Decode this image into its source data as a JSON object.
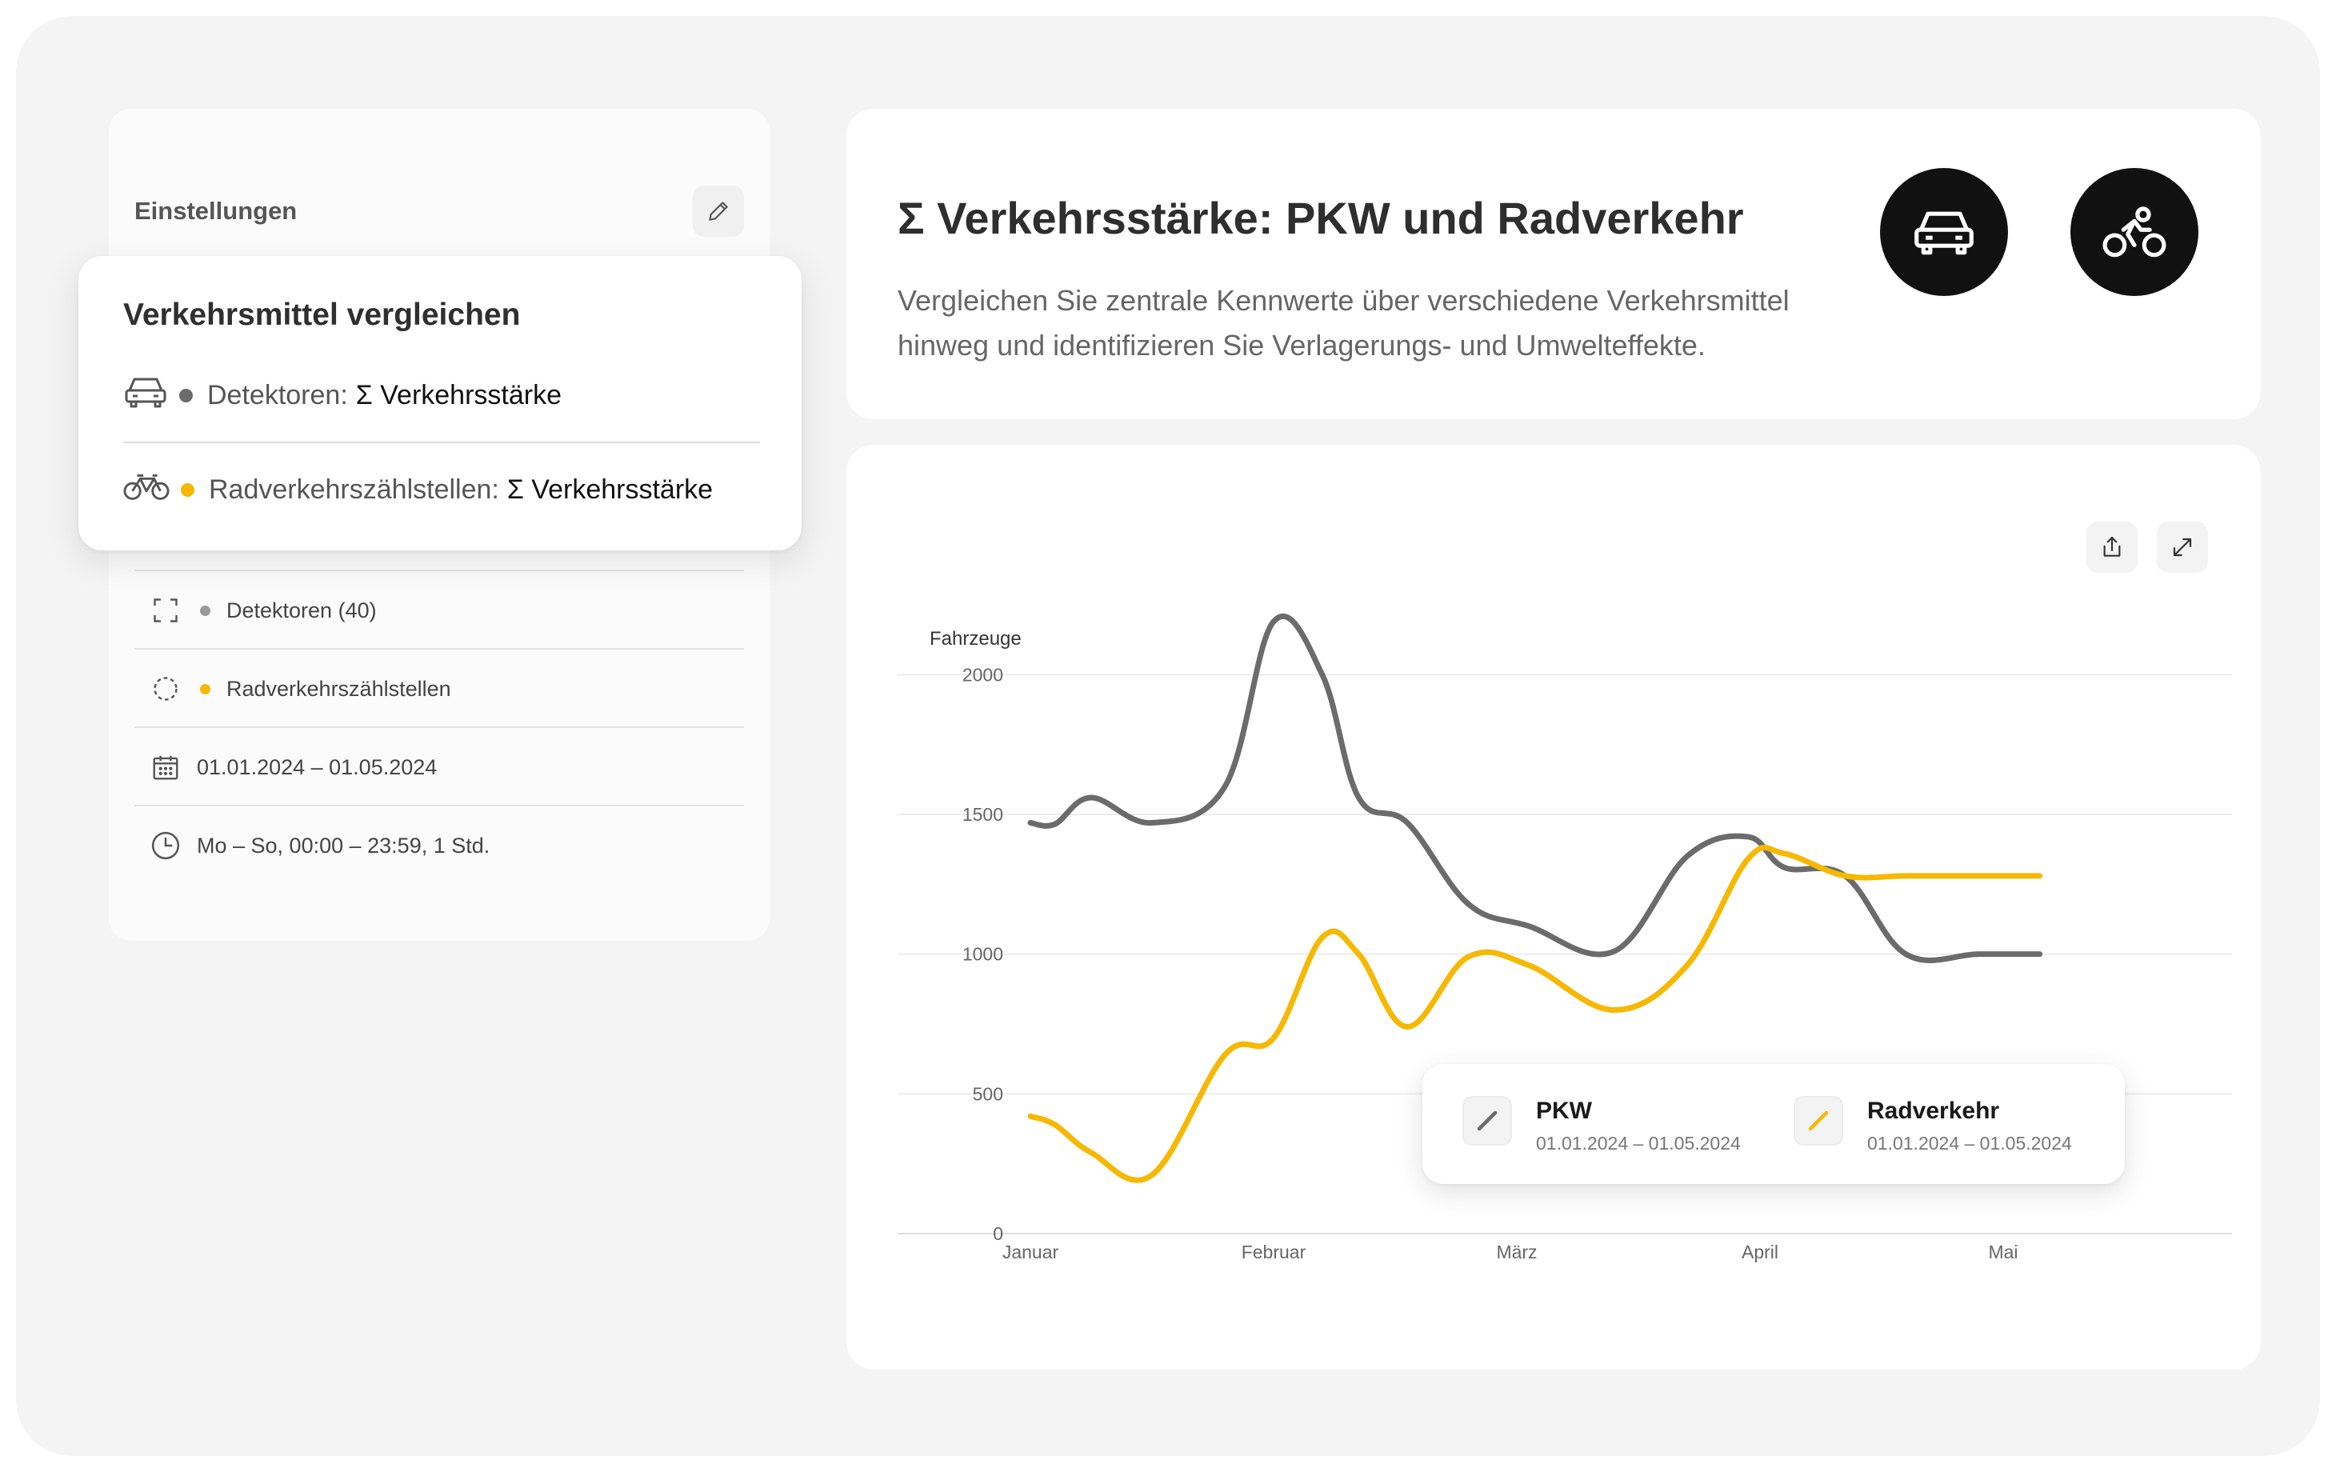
{
  "settings": {
    "title": "Einstellungen",
    "rows": [
      {
        "label": "Detektoren (40)",
        "dot_color": "#9a9a9a",
        "icon": "frame-corners-icon"
      },
      {
        "label": "Radverkehrszählstellen",
        "dot_color": "#f6b800",
        "icon": "dashed-circle-icon"
      },
      {
        "label": "01.01.2024 – 01.05.2024",
        "icon": "calendar-icon"
      },
      {
        "label": "Mo – So, 00:00 – 23:59, 1 Std.",
        "icon": "clock-icon"
      }
    ]
  },
  "popup": {
    "title": "Verkehrsmittel vergleichen",
    "items": [
      {
        "prefix": "Detektoren:",
        "metric": "Σ Verkehrsstärke",
        "dot_color": "#6b6b6b",
        "icon": "car-icon"
      },
      {
        "prefix": "Radverkehrszählstellen:",
        "metric": "Σ Verkehrsstärke",
        "dot_color": "#f6b800",
        "icon": "bicycle-icon"
      }
    ]
  },
  "header": {
    "title": "Σ Verkehrsstärke: PKW und Radverkehr",
    "description": "Vergleichen Sie zentrale Kennwerte über verschiedene Verkehrsmittel hinweg und identifizieren Sie Verlagerungs- und Umwelteffekte.",
    "mode_icons": [
      "car-icon",
      "cyclist-icon"
    ]
  },
  "colors": {
    "pkw": "#6b6b6b",
    "rad": "#f6b800",
    "grid": "#ececec"
  },
  "chart_data": {
    "type": "line",
    "ylabel": "Fahrzeuge",
    "ylim": [
      0,
      2250
    ],
    "yticks": [
      0,
      500,
      1000,
      1500,
      2000
    ],
    "xticks": [
      "Januar",
      "Februar",
      "März",
      "April",
      "Mai"
    ],
    "x": [
      0,
      0.1,
      0.25,
      0.5,
      0.8,
      1.0,
      1.2,
      1.35,
      1.55,
      1.8,
      2.05,
      2.4,
      2.7,
      2.95,
      3.1,
      3.35,
      3.6,
      3.9,
      4.15
    ],
    "series": [
      {
        "name": "PKW",
        "range": "01.01.2024 – 01.05.2024",
        "color": "#6b6b6b",
        "values": [
          1470,
          1465,
          1560,
          1470,
          1600,
          2190,
          2000,
          1560,
          1470,
          1180,
          1100,
          1010,
          1350,
          1420,
          1310,
          1280,
          1000,
          1000,
          1000
        ]
      },
      {
        "name": "Radverkehr",
        "range": "01.01.2024 – 01.05.2024",
        "color": "#f6b800",
        "values": [
          420,
          390,
          290,
          210,
          640,
          700,
          1060,
          1000,
          740,
          990,
          960,
          800,
          960,
          1340,
          1360,
          1280,
          1280,
          1280,
          1280
        ]
      }
    ]
  }
}
